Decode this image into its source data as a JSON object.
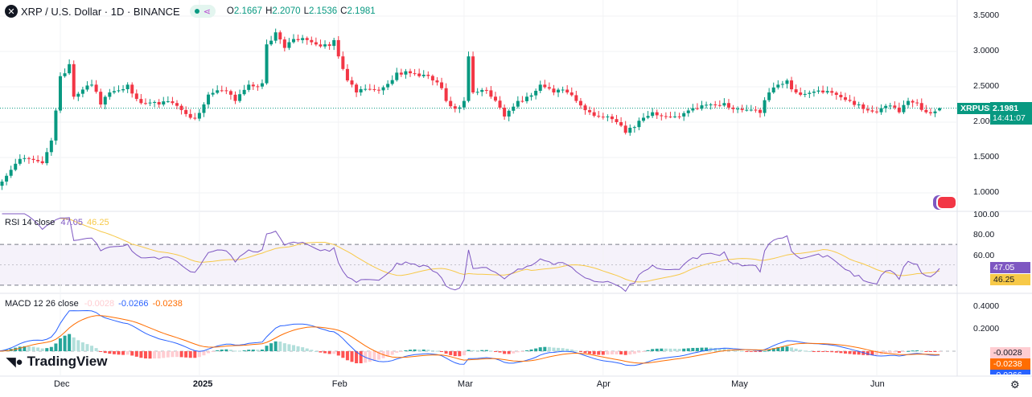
{
  "header": {
    "symbol_icon": "x-circle-icon",
    "title": "XRP / U.S. Dollar · 1D · BINANCE",
    "o_label": "O",
    "o": "2.1667",
    "h_label": "H",
    "h": "2.2070",
    "l_label": "L",
    "l": "2.1536",
    "c_label": "C",
    "c": "2.1981"
  },
  "price_tag": {
    "symbol": "XRPUSD",
    "price": "2.1981",
    "countdown": "14:41:07"
  },
  "rsi": {
    "label": "RSI 14 close",
    "value": "47.05",
    "ma": "46.25",
    "axis": [
      "100.00",
      "80.00",
      "60.00"
    ],
    "color": "#7e57c2",
    "ma_color": "#f7c948"
  },
  "macd": {
    "label": "MACD 12 26 close",
    "hist": "-0.0028",
    "macd": "-0.0266",
    "signal": "-0.0238",
    "axis": [
      "0.4000",
      "0.2000"
    ],
    "macd_color": "#2962ff",
    "signal_color": "#ff6d00"
  },
  "logo": "TradingView",
  "colors": {
    "up": "#089981",
    "down": "#f23645"
  },
  "chart_data": {
    "type": "candlestick",
    "title": "XRP / U.S. Dollar · 1D · BINANCE",
    "y_ticks": [
      "3.5000",
      "3.0000",
      "2.5000",
      "2.0000",
      "1.5000",
      "1.0000"
    ],
    "ylim": [
      1.0,
      3.5
    ],
    "x_ticks": [
      "Dec",
      "2025",
      "Feb",
      "Mar",
      "Apr",
      "May",
      "Jun"
    ],
    "close_keypoints": [
      [
        "2024-11-17",
        1.1
      ],
      [
        "2024-11-22",
        1.48
      ],
      [
        "2024-11-27",
        1.42
      ],
      [
        "2024-11-29",
        1.74
      ],
      [
        "2024-12-01",
        2.65
      ],
      [
        "2024-12-03",
        2.82
      ],
      [
        "2024-12-04",
        2.36
      ],
      [
        "2024-12-08",
        2.53
      ],
      [
        "2024-12-10",
        2.25
      ],
      [
        "2024-12-12",
        2.42
      ],
      [
        "2024-12-16",
        2.53
      ],
      [
        "2024-12-19",
        2.27
      ],
      [
        "2024-12-23",
        2.25
      ],
      [
        "2024-12-26",
        2.27
      ],
      [
        "2024-12-31",
        2.05
      ],
      [
        "2025-01-03",
        2.39
      ],
      [
        "2025-01-06",
        2.45
      ],
      [
        "2025-01-09",
        2.3
      ],
      [
        "2025-01-12",
        2.53
      ],
      [
        "2025-01-15",
        2.55
      ],
      [
        "2025-01-16",
        3.1
      ],
      [
        "2025-01-18",
        3.27
      ],
      [
        "2025-01-20",
        3.05
      ],
      [
        "2025-01-23",
        3.16
      ],
      [
        "2025-01-29",
        3.1
      ],
      [
        "2025-01-31",
        3.16
      ],
      [
        "2025-02-01",
        2.93
      ],
      [
        "2025-02-03",
        2.59
      ],
      [
        "2025-02-05",
        2.42
      ],
      [
        "2025-02-10",
        2.45
      ],
      [
        "2025-02-14",
        2.7
      ],
      [
        "2025-02-16",
        2.72
      ],
      [
        "2025-02-19",
        2.65
      ],
      [
        "2025-02-22",
        2.59
      ],
      [
        "2025-02-24",
        2.48
      ],
      [
        "2025-02-25",
        2.3
      ],
      [
        "2025-02-27",
        2.19
      ],
      [
        "2025-03-01",
        2.3
      ],
      [
        "2025-03-02",
        2.93
      ],
      [
        "2025-03-03",
        2.42
      ],
      [
        "2025-03-06",
        2.45
      ],
      [
        "2025-03-07",
        2.36
      ],
      [
        "2025-03-10",
        2.08
      ],
      [
        "2025-03-13",
        2.3
      ],
      [
        "2025-03-15",
        2.36
      ],
      [
        "2025-03-18",
        2.53
      ],
      [
        "2025-03-21",
        2.42
      ],
      [
        "2025-03-24",
        2.42
      ],
      [
        "2025-03-26",
        2.3
      ],
      [
        "2025-03-29",
        2.14
      ],
      [
        "2025-04-02",
        2.08
      ],
      [
        "2025-04-04",
        2.0
      ],
      [
        "2025-04-06",
        1.85
      ],
      [
        "2025-04-08",
        1.93
      ],
      [
        "2025-04-09",
        2.02
      ],
      [
        "2025-04-12",
        2.14
      ],
      [
        "2025-04-18",
        2.08
      ],
      [
        "2025-04-22",
        2.19
      ],
      [
        "2025-04-25",
        2.25
      ],
      [
        "2025-04-28",
        2.27
      ],
      [
        "2025-05-01",
        2.19
      ],
      [
        "2025-05-06",
        2.13
      ],
      [
        "2025-05-08",
        2.42
      ],
      [
        "2025-05-10",
        2.53
      ],
      [
        "2025-05-12",
        2.59
      ],
      [
        "2025-05-14",
        2.42
      ],
      [
        "2025-05-20",
        2.42
      ],
      [
        "2025-05-26",
        2.3
      ],
      [
        "2025-05-28",
        2.25
      ],
      [
        "2025-06-01",
        2.14
      ],
      [
        "2025-06-03",
        2.23
      ],
      [
        "2025-06-06",
        2.14
      ],
      [
        "2025-06-08",
        2.3
      ],
      [
        "2025-06-10",
        2.27
      ],
      [
        "2025-06-12",
        2.14
      ],
      [
        "2025-06-15",
        2.1981
      ]
    ],
    "last": {
      "open": 2.1667,
      "high": 2.207,
      "low": 2.1536,
      "close": 2.1981
    }
  }
}
